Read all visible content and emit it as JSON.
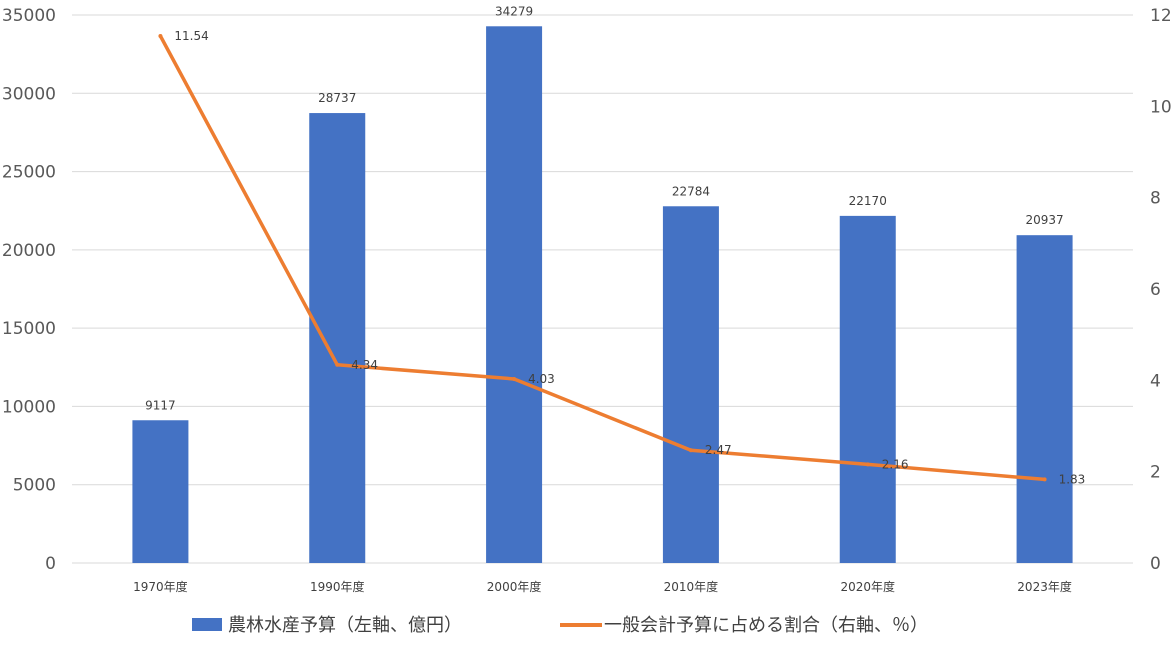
{
  "chart_data": {
    "type": "bar",
    "categories": [
      "1970年度",
      "1990年度",
      "2000年度",
      "2010年度",
      "2020年度",
      "2023年度"
    ],
    "series": [
      {
        "name": "農林水産予算（左軸、億円）",
        "type": "bar",
        "axis": "left",
        "color": "#4472c4",
        "values": [
          9117,
          28737,
          34279,
          22784,
          22170,
          20937
        ],
        "labels": [
          "9117",
          "28737",
          "34279",
          "22784",
          "22170",
          "20937"
        ]
      },
      {
        "name": "一般会計予算に占める割合（右軸、％）",
        "type": "line",
        "axis": "right",
        "color": "#ed7d31",
        "values": [
          11.54,
          4.34,
          4.03,
          2.47,
          2.16,
          1.83
        ],
        "labels": [
          "11.54",
          "4.34",
          "4.03",
          "2.47",
          "2.16",
          "1.83"
        ]
      }
    ],
    "y_left": {
      "ylim": [
        0,
        35000
      ],
      "ticks": [
        0,
        5000,
        10000,
        15000,
        20000,
        25000,
        30000,
        35000
      ],
      "tick_labels": [
        "0",
        "5000",
        "10000",
        "15000",
        "20000",
        "25000",
        "30000",
        "35000"
      ]
    },
    "y_right": {
      "ylim": [
        0,
        12
      ],
      "ticks": [
        0,
        2,
        4,
        6,
        8,
        10,
        12
      ],
      "tick_labels": [
        "0",
        "2",
        "4",
        "6",
        "8",
        "10",
        "12"
      ]
    },
    "grid": true,
    "legend_position": "bottom"
  }
}
